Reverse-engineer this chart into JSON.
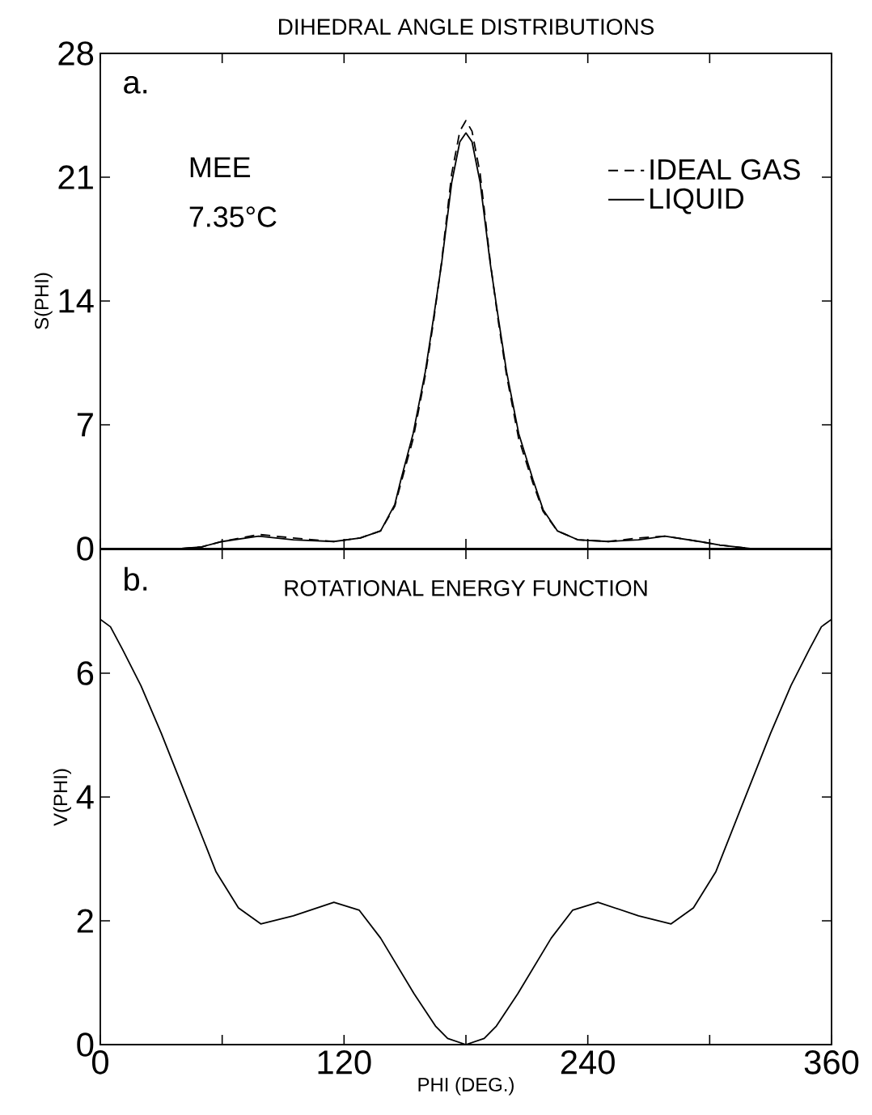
{
  "chart_data": [
    {
      "type": "line",
      "title": "DIHEDRAL ANGLE DISTRIBUTIONS",
      "ylabel": "S(PHI)",
      "annotations": [
        "a.",
        "MEE",
        "7.35°C"
      ],
      "xlim": [
        0,
        360
      ],
      "ylim": [
        0,
        28
      ],
      "xticks": [
        {
          "value": 0,
          "label": null
        },
        {
          "value": 60,
          "label": null
        },
        {
          "value": 120,
          "label": null
        },
        {
          "value": 180,
          "label": null
        },
        {
          "value": 240,
          "label": null
        },
        {
          "value": 300,
          "label": null
        },
        {
          "value": 360,
          "label": null
        }
      ],
      "yticks": [
        0,
        7,
        14,
        21,
        28
      ],
      "tick_labels": "y",
      "legend": "top right",
      "series": [
        {
          "name": "IDEAL GAS",
          "color": "#000000",
          "line_style": "dashed",
          "x": [
            0,
            40,
            50,
            60,
            78,
            95,
            115,
            128,
            138,
            145,
            148,
            154,
            160,
            164,
            168,
            173,
            177,
            180,
            183,
            187,
            192,
            196,
            200,
            206,
            213,
            218,
            225,
            235,
            250,
            265,
            278,
            295,
            305,
            320,
            360
          ],
          "values": [
            0,
            0,
            0.1,
            0.4,
            0.8,
            0.6,
            0.4,
            0.6,
            1.0,
            2.4,
            3.7,
            6.2,
            9.8,
            12.8,
            16.2,
            21.2,
            23.6,
            24.2,
            23.6,
            21.2,
            16.2,
            12.8,
            9.8,
            6.2,
            3.7,
            2.1,
            1.0,
            0.5,
            0.4,
            0.6,
            0.7,
            0.4,
            0.2,
            0,
            0
          ]
        },
        {
          "name": "LIQUID",
          "color": "#000000",
          "line_style": "solid",
          "x": [
            0,
            40,
            50,
            60,
            78,
            95,
            115,
            128,
            138,
            145,
            148,
            154,
            160,
            164,
            168,
            173,
            177,
            180,
            183,
            187,
            192,
            196,
            200,
            206,
            213,
            218,
            225,
            235,
            250,
            265,
            278,
            295,
            305,
            320,
            360
          ],
          "values": [
            0,
            0,
            0.1,
            0.4,
            0.7,
            0.5,
            0.4,
            0.6,
            1.0,
            2.5,
            3.9,
            6.5,
            10,
            13,
            16.1,
            20.7,
            23,
            23.5,
            23,
            20.7,
            16.1,
            13,
            10,
            6.5,
            3.9,
            2.2,
            1.0,
            0.5,
            0.4,
            0.5,
            0.7,
            0.4,
            0.2,
            0,
            0
          ]
        }
      ]
    },
    {
      "type": "line",
      "title": "ROTATIONAL ENERGY FUNCTION",
      "xlabel": "PHI (DEG.)",
      "ylabel": "V(PHI)",
      "annotations": [
        "b."
      ],
      "xlim": [
        0,
        360
      ],
      "ylim": [
        0,
        8
      ],
      "xticks": [
        0,
        {
          "value": 60,
          "label": null
        },
        120,
        {
          "value": 180,
          "label": null
        },
        240,
        {
          "value": 300,
          "label": null
        },
        360
      ],
      "yticks": [
        0,
        2,
        4,
        6
      ],
      "series": [
        {
          "color": "#000000",
          "line_style": "solid",
          "x": [
            0,
            5,
            11,
            20,
            30,
            44,
            57,
            68,
            79,
            95,
            115,
            127.5,
            138,
            154.5,
            165,
            171,
            180,
            189,
            195,
            205.5,
            222,
            232.5,
            245,
            265,
            281,
            292,
            303,
            316,
            330,
            340,
            349,
            355,
            360
          ],
          "values": [
            6.87,
            6.75,
            6.38,
            5.8,
            5.03,
            3.87,
            2.79,
            2.21,
            1.95,
            2.08,
            2.3,
            2.17,
            1.72,
            0.82,
            0.3,
            0.1,
            0,
            0.1,
            0.3,
            0.82,
            1.72,
            2.17,
            2.3,
            2.08,
            1.95,
            2.21,
            2.79,
            3.87,
            5.03,
            5.8,
            6.38,
            6.75,
            6.87
          ]
        }
      ]
    }
  ]
}
